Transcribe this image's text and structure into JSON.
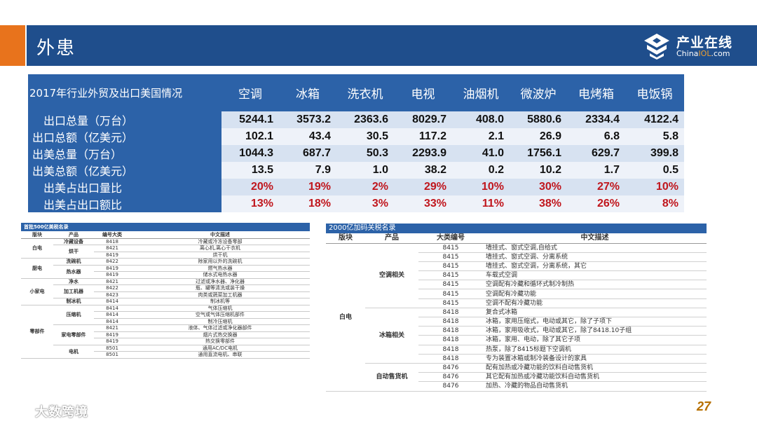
{
  "header": {
    "title": "外患"
  },
  "logo": {
    "name": "产业在线",
    "sub_prefix": "China",
    "sub_highlight": "IOL",
    "sub_suffix": ".com"
  },
  "main_table": {
    "corner": "2017年行业外贸及出口美国情况",
    "columns": [
      "空调",
      "冰箱",
      "洗衣机",
      "电视",
      "油烟机",
      "微波炉",
      "电烤箱",
      "电饭锅"
    ],
    "rows": [
      {
        "label": "出口总量（万台）",
        "values": [
          "5244.1",
          "3573.2",
          "2363.6",
          "8029.7",
          "408.0",
          "5880.6",
          "2334.4",
          "4122.4"
        ]
      },
      {
        "label": "出口总额（亿美元）",
        "values": [
          "102.1",
          "43.4",
          "30.5",
          "117.2",
          "2.1",
          "26.9",
          "6.8",
          "5.8"
        ]
      },
      {
        "label": "出美总量（万台）",
        "values": [
          "1044.3",
          "687.7",
          "50.3",
          "2293.9",
          "41.0",
          "1756.1",
          "629.7",
          "399.8"
        ]
      },
      {
        "label": "出美总额（亿美元）",
        "values": [
          "13.5",
          "7.9",
          "1.0",
          "38.2",
          "0.2",
          "10.2",
          "1.7",
          "0.5"
        ]
      },
      {
        "label": "出美占出口量比",
        "values": [
          "20%",
          "19%",
          "2%",
          "29%",
          "10%",
          "30%",
          "27%",
          "10%"
        ]
      },
      {
        "label": "出美占出口额比",
        "values": [
          "13%",
          "18%",
          "3%",
          "33%",
          "11%",
          "38%",
          "26%",
          "8%"
        ]
      }
    ]
  },
  "left_table": {
    "caption": "首批500亿美税名录",
    "headers": [
      "版块",
      "产品",
      "编号大类",
      "中文描述"
    ],
    "rows": [
      {
        "g": "白电",
        "p": "冷藏设备",
        "c": "8418",
        "d": "冷藏或冷冻设备零部"
      },
      {
        "g": "",
        "p": "烘干",
        "c": "8421",
        "d": "离心机,离心干衣机"
      },
      {
        "g": "",
        "p": "",
        "c": "8419",
        "d": "烘干机"
      },
      {
        "g": "厨电",
        "p": "洗碗机",
        "c": "8422",
        "d": "除家用以外的洗碗机"
      },
      {
        "g": "",
        "p": "热水器",
        "c": "8419",
        "d": "燃气热水器"
      },
      {
        "g": "",
        "p": "",
        "c": "8419",
        "d": "储水式电热水器"
      },
      {
        "g": "小家电",
        "p": "净水",
        "c": "8421",
        "d": "过滤或净水器、净化器"
      },
      {
        "g": "",
        "p": "加工机器",
        "c": "8422",
        "d": "瓶、罐等清洗或装干燥"
      },
      {
        "g": "",
        "p": "",
        "c": "8423",
        "d": "肉类或蔬菜加工机器"
      },
      {
        "g": "",
        "p": "制冰机",
        "c": "8414",
        "d": "制冰机等"
      },
      {
        "g": "零部件",
        "p": "压缩机",
        "c": "8414",
        "d": "气体压缩机"
      },
      {
        "g": "",
        "p": "",
        "c": "8414",
        "d": "空气或气体压缩机部件"
      },
      {
        "g": "",
        "p": "",
        "c": "8414",
        "d": "制冷压缩机"
      },
      {
        "g": "",
        "p": "家电零部件",
        "c": "8421",
        "d": "液体、气体过滤或净化器部件"
      },
      {
        "g": "",
        "p": "",
        "c": "8419",
        "d": "烟片式热交换器"
      },
      {
        "g": "",
        "p": "",
        "c": "8419",
        "d": "热交换零部件"
      },
      {
        "g": "",
        "p": "电机",
        "c": "8501",
        "d": "通用AC/DC电机"
      },
      {
        "g": "",
        "p": "",
        "c": "8501",
        "d": "通用直流电机、串联"
      }
    ]
  },
  "right_table": {
    "caption": "2000亿加码关税名录",
    "headers": [
      "版块",
      "产品",
      "大类编号",
      "中文描述"
    ],
    "group": "白电",
    "products": [
      "空调相关",
      "冰箱相关",
      "自动售货机"
    ],
    "rows": [
      {
        "c": "8415",
        "d": "墙挂式、窗式空调,自给式"
      },
      {
        "c": "8415",
        "d": "墙挂式、窗式空调、分离系统"
      },
      {
        "c": "8415",
        "d": "墙挂式、窗式空调，分离系统，其它"
      },
      {
        "c": "8415",
        "d": "车载式空调"
      },
      {
        "c": "8415",
        "d": "空调配有冷藏和循环式制冷制热"
      },
      {
        "c": "8415",
        "d": "空调配有冷藏功能"
      },
      {
        "c": "8415",
        "d": "空调不配有冷藏功能"
      },
      {
        "c": "8418",
        "d": "复合式冰箱"
      },
      {
        "c": "8418",
        "d": "冰箱，家用压缩式，电动或其它，除了子项下"
      },
      {
        "c": "8418",
        "d": "冰箱，家用吸收式，电动或其它，除了8418.10子组"
      },
      {
        "c": "8418",
        "d": "冰箱，家用、电动，除了其它子项"
      },
      {
        "c": "8418",
        "d": "热泵，除了8415标题下空调机"
      },
      {
        "c": "8418",
        "d": "专为装置冰箱或制冷装备设计的家具"
      },
      {
        "c": "8476",
        "d": "配有加热或冷藏功能的饮料自动售货机"
      },
      {
        "c": "8476",
        "d": "其它配有加热或冷藏功能饮料自动售货机"
      },
      {
        "c": "8476",
        "d": "加热、冷藏的物品自动售货机"
      }
    ]
  },
  "footer": {
    "page": "27",
    "watermark": "大数跨境"
  },
  "colors": {
    "accent": "#e8731c",
    "brand_blue": "#1f4e8c",
    "table_blue": "#2c62a8",
    "highlight_red": "#c0161d"
  },
  "icons": {
    "logo": "chinaiol-logo-icon",
    "watermark": "dashujuajing-logo-icon"
  }
}
